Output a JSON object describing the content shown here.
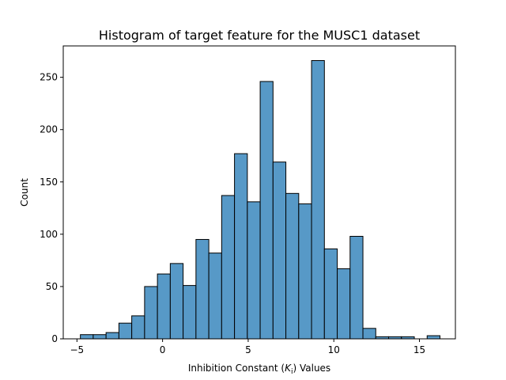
{
  "chart_data": {
    "type": "bar",
    "title": "Histogram of target feature for the MUSC1 dataset",
    "xlabel_prefix": "Inhibition Constant (",
    "xlabel_var": "K",
    "xlabel_sub": "i",
    "xlabel_suffix": ") Values",
    "ylabel": "Count",
    "xlim": [
      -5.8,
      17.1
    ],
    "ylim": [
      0,
      280
    ],
    "xticks": [
      -5,
      0,
      5,
      10,
      15
    ],
    "yticks": [
      0,
      50,
      100,
      150,
      200,
      250
    ],
    "bin_start": -4.8,
    "bin_width": 0.75,
    "values": [
      4,
      4,
      6,
      15,
      22,
      50,
      62,
      72,
      51,
      95,
      82,
      137,
      177,
      131,
      246,
      169,
      139,
      129,
      266,
      86,
      67,
      98,
      10,
      2,
      2,
      2,
      0,
      3
    ],
    "bar_color": "#5799c7",
    "grid": false
  }
}
